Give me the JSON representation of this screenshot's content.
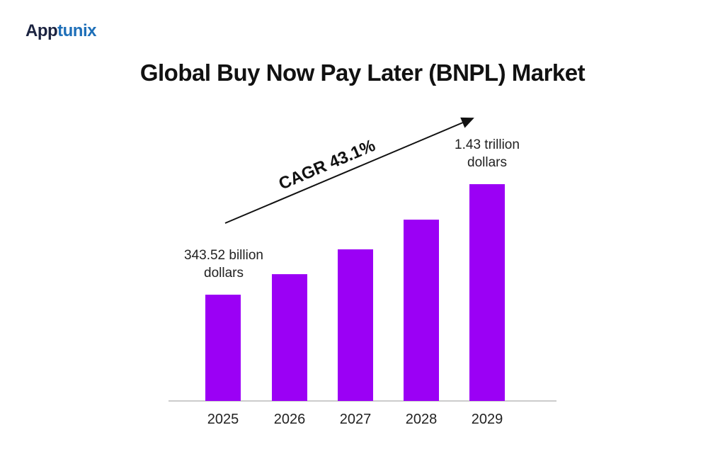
{
  "logo": {
    "part1": "App",
    "part2": "tunix"
  },
  "chart_data": {
    "type": "bar",
    "title": "Global Buy Now Pay Later (BNPL) Market",
    "categories": [
      "2025",
      "2026",
      "2027",
      "2028",
      "2029"
    ],
    "values": [
      343.52,
      545,
      789,
      1081,
      1430
    ],
    "unit": "billion dollars",
    "data_labels": [
      {
        "line1": "343.52 billion",
        "line2": "dollars"
      },
      null,
      null,
      null,
      {
        "line1": "1.43 trillion",
        "line2": "dollars"
      }
    ],
    "annotation": "CAGR 43.1%",
    "bar_color": "#9b00f5",
    "grid": false,
    "legend": "none"
  }
}
